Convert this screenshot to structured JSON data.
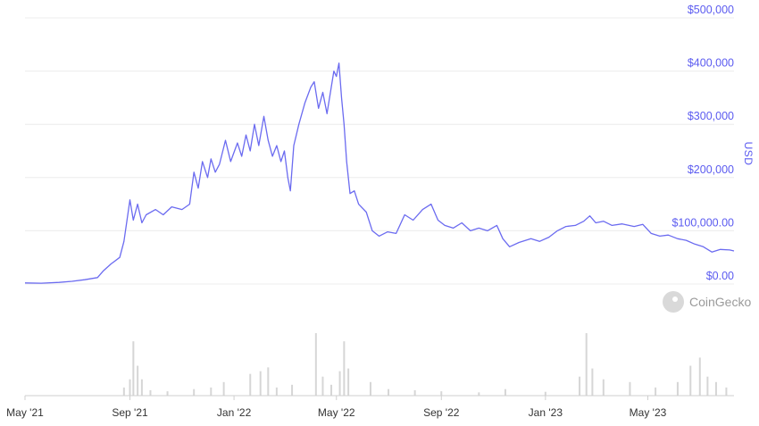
{
  "chart_data": {
    "type": "line",
    "ylabel": "USD",
    "y_ticks": [
      "$0.00",
      "$100,000.00",
      "$200,000",
      "$300,000",
      "$400,000",
      "$500,000"
    ],
    "ylim": [
      0,
      500000
    ],
    "x_ticks": [
      "May '21",
      "Sep '21",
      "Jan '22",
      "May '22",
      "Sep '22",
      "Jan '23",
      "May '23"
    ],
    "x_range": [
      "2021-05-01",
      "2023-08-10"
    ],
    "grid": true,
    "line_color": "#6b6bf0",
    "volume_color": "#d6d6d6",
    "series": [
      {
        "values": [
          [
            "2021-05-01",
            2000
          ],
          [
            "2021-05-20",
            1500
          ],
          [
            "2021-06-10",
            3000
          ],
          [
            "2021-06-25",
            5000
          ],
          [
            "2021-07-10",
            8000
          ],
          [
            "2021-07-25",
            12000
          ],
          [
            "2021-08-01",
            25000
          ],
          [
            "2021-08-10",
            38000
          ],
          [
            "2021-08-20",
            50000
          ],
          [
            "2021-08-25",
            80000
          ],
          [
            "2021-09-01",
            158000
          ],
          [
            "2021-09-05",
            120000
          ],
          [
            "2021-09-10",
            150000
          ],
          [
            "2021-09-15",
            115000
          ],
          [
            "2021-09-20",
            130000
          ],
          [
            "2021-10-01",
            140000
          ],
          [
            "2021-10-10",
            130000
          ],
          [
            "2021-10-20",
            145000
          ],
          [
            "2021-11-01",
            140000
          ],
          [
            "2021-11-10",
            150000
          ],
          [
            "2021-11-15",
            210000
          ],
          [
            "2021-11-20",
            180000
          ],
          [
            "2021-11-25",
            230000
          ],
          [
            "2021-12-01",
            200000
          ],
          [
            "2021-12-05",
            235000
          ],
          [
            "2021-12-10",
            210000
          ],
          [
            "2021-12-15",
            225000
          ],
          [
            "2021-12-22",
            270000
          ],
          [
            "2021-12-28",
            230000
          ],
          [
            "2022-01-05",
            265000
          ],
          [
            "2022-01-10",
            240000
          ],
          [
            "2022-01-15",
            280000
          ],
          [
            "2022-01-20",
            250000
          ],
          [
            "2022-01-25",
            300000
          ],
          [
            "2022-01-30",
            260000
          ],
          [
            "2022-02-05",
            315000
          ],
          [
            "2022-02-10",
            270000
          ],
          [
            "2022-02-15",
            240000
          ],
          [
            "2022-02-20",
            260000
          ],
          [
            "2022-02-25",
            230000
          ],
          [
            "2022-03-01",
            250000
          ],
          [
            "2022-03-05",
            200000
          ],
          [
            "2022-03-08",
            175000
          ],
          [
            "2022-03-12",
            260000
          ],
          [
            "2022-03-18",
            300000
          ],
          [
            "2022-03-25",
            340000
          ],
          [
            "2022-04-01",
            370000
          ],
          [
            "2022-04-05",
            380000
          ],
          [
            "2022-04-10",
            330000
          ],
          [
            "2022-04-15",
            360000
          ],
          [
            "2022-04-20",
            320000
          ],
          [
            "2022-04-25",
            370000
          ],
          [
            "2022-04-28",
            400000
          ],
          [
            "2022-05-01",
            390000
          ],
          [
            "2022-05-04",
            415000
          ],
          [
            "2022-05-07",
            350000
          ],
          [
            "2022-05-10",
            300000
          ],
          [
            "2022-05-13",
            230000
          ],
          [
            "2022-05-17",
            170000
          ],
          [
            "2022-05-22",
            175000
          ],
          [
            "2022-05-27",
            150000
          ],
          [
            "2022-06-05",
            135000
          ],
          [
            "2022-06-12",
            100000
          ],
          [
            "2022-06-20",
            90000
          ],
          [
            "2022-06-30",
            98000
          ],
          [
            "2022-07-10",
            95000
          ],
          [
            "2022-07-20",
            130000
          ],
          [
            "2022-07-30",
            120000
          ],
          [
            "2022-08-10",
            140000
          ],
          [
            "2022-08-20",
            150000
          ],
          [
            "2022-08-28",
            120000
          ],
          [
            "2022-09-05",
            110000
          ],
          [
            "2022-09-15",
            105000
          ],
          [
            "2022-09-25",
            115000
          ],
          [
            "2022-10-05",
            100000
          ],
          [
            "2022-10-15",
            105000
          ],
          [
            "2022-10-25",
            100000
          ],
          [
            "2022-11-05",
            110000
          ],
          [
            "2022-11-12",
            85000
          ],
          [
            "2022-11-20",
            70000
          ],
          [
            "2022-12-01",
            78000
          ],
          [
            "2022-12-15",
            85000
          ],
          [
            "2022-12-25",
            80000
          ],
          [
            "2023-01-05",
            88000
          ],
          [
            "2023-01-15",
            100000
          ],
          [
            "2023-01-25",
            108000
          ],
          [
            "2023-02-05",
            110000
          ],
          [
            "2023-02-15",
            118000
          ],
          [
            "2023-02-22",
            128000
          ],
          [
            "2023-03-01",
            115000
          ],
          [
            "2023-03-10",
            118000
          ],
          [
            "2023-03-20",
            110000
          ],
          [
            "2023-04-01",
            113000
          ],
          [
            "2023-04-15",
            108000
          ],
          [
            "2023-04-25",
            112000
          ],
          [
            "2023-05-05",
            95000
          ],
          [
            "2023-05-15",
            90000
          ],
          [
            "2023-05-25",
            92000
          ],
          [
            "2023-06-05",
            85000
          ],
          [
            "2023-06-15",
            82000
          ],
          [
            "2023-06-25",
            75000
          ],
          [
            "2023-07-05",
            70000
          ],
          [
            "2023-07-15",
            60000
          ],
          [
            "2023-07-25",
            65000
          ],
          [
            "2023-08-05",
            64000
          ],
          [
            "2023-08-10",
            62000
          ]
        ]
      }
    ],
    "volume": [
      [
        "2021-08-25",
        0.15
      ],
      [
        "2021-09-01",
        0.3
      ],
      [
        "2021-09-05",
        1.0
      ],
      [
        "2021-09-10",
        0.55
      ],
      [
        "2021-09-15",
        0.3
      ],
      [
        "2021-09-25",
        0.1
      ],
      [
        "2021-10-15",
        0.08
      ],
      [
        "2021-11-15",
        0.12
      ],
      [
        "2021-12-05",
        0.15
      ],
      [
        "2021-12-20",
        0.25
      ],
      [
        "2022-01-20",
        0.4
      ],
      [
        "2022-02-01",
        0.45
      ],
      [
        "2022-02-10",
        0.52
      ],
      [
        "2022-02-20",
        0.15
      ],
      [
        "2022-03-10",
        0.2
      ],
      [
        "2022-04-07",
        1.15
      ],
      [
        "2022-04-15",
        0.35
      ],
      [
        "2022-04-25",
        0.2
      ],
      [
        "2022-05-05",
        0.45
      ],
      [
        "2022-05-10",
        1.0
      ],
      [
        "2022-05-15",
        0.5
      ],
      [
        "2022-06-10",
        0.25
      ],
      [
        "2022-07-01",
        0.12
      ],
      [
        "2022-08-01",
        0.1
      ],
      [
        "2022-09-01",
        0.08
      ],
      [
        "2022-10-15",
        0.06
      ],
      [
        "2022-11-15",
        0.12
      ],
      [
        "2023-01-01",
        0.07
      ],
      [
        "2023-02-10",
        0.35
      ],
      [
        "2023-02-18",
        1.15
      ],
      [
        "2023-02-25",
        0.5
      ],
      [
        "2023-03-10",
        0.3
      ],
      [
        "2023-04-10",
        0.25
      ],
      [
        "2023-05-10",
        0.15
      ],
      [
        "2023-06-05",
        0.25
      ],
      [
        "2023-06-20",
        0.55
      ],
      [
        "2023-07-01",
        0.7
      ],
      [
        "2023-07-10",
        0.35
      ],
      [
        "2023-07-20",
        0.25
      ],
      [
        "2023-08-01",
        0.15
      ]
    ]
  },
  "watermark": "CoinGecko"
}
